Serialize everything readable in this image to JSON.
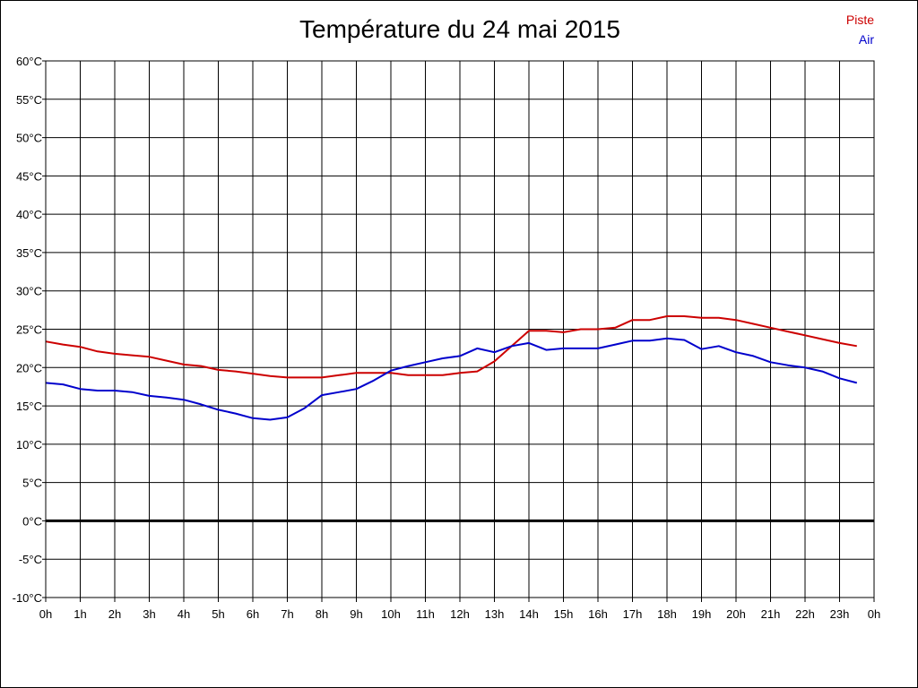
{
  "chart_data": {
    "type": "line",
    "title": "Température du 24 mai 2015",
    "xlabel": "",
    "ylabel": "",
    "x_tick_labels": [
      "0h",
      "1h",
      "2h",
      "3h",
      "4h",
      "5h",
      "6h",
      "7h",
      "8h",
      "9h",
      "10h",
      "11h",
      "12h",
      "13h",
      "14h",
      "15h",
      "16h",
      "17h",
      "18h",
      "19h",
      "20h",
      "21h",
      "22h",
      "23h",
      "0h"
    ],
    "y_tick_labels": [
      "60°C",
      "55°C",
      "50°C",
      "45°C",
      "40°C",
      "35°C",
      "30°C",
      "25°C",
      "20°C",
      "15°C",
      "10°C",
      "5°C",
      "0°C",
      "-5°C",
      "-10°C"
    ],
    "xlim": [
      0,
      24
    ],
    "ylim": [
      -10,
      60
    ],
    "grid": true,
    "legend_position": "top-right",
    "zero_line": true,
    "series": [
      {
        "name": "Piste",
        "color": "#cc0000",
        "x": [
          0,
          0.5,
          1,
          1.5,
          2,
          2.5,
          3,
          3.5,
          4,
          4.5,
          5,
          5.5,
          6,
          6.5,
          7,
          7.5,
          8,
          8.5,
          9,
          9.5,
          10,
          10.5,
          11,
          11.5,
          12,
          12.5,
          13,
          13.5,
          14,
          14.5,
          15,
          15.5,
          16,
          16.5,
          17,
          17.5,
          18,
          18.5,
          19,
          19.5,
          20,
          20.5,
          21,
          21.5,
          22,
          22.5,
          23,
          23.5
        ],
        "y": [
          23.4,
          23,
          22.7,
          22.1,
          21.8,
          21.6,
          21.4,
          20.9,
          20.4,
          20.2,
          19.7,
          19.5,
          19.2,
          18.9,
          18.7,
          18.7,
          18.7,
          19,
          19.3,
          19.3,
          19.3,
          19,
          19,
          19,
          19.3,
          19.5,
          20.8,
          22.8,
          24.8,
          24.8,
          24.6,
          25,
          25,
          25.2,
          26.2,
          26.2,
          26.7,
          26.7,
          26.5,
          26.5,
          26.2,
          25.7,
          25.2,
          24.7,
          24.2,
          23.7,
          23.2,
          22.8
        ]
      },
      {
        "name": "Air",
        "color": "#0000cc",
        "x": [
          0,
          0.5,
          1,
          1.5,
          2,
          2.5,
          3,
          3.5,
          4,
          4.5,
          5,
          5.5,
          6,
          6.5,
          7,
          7.5,
          8,
          8.5,
          9,
          9.5,
          10,
          10.5,
          11,
          11.5,
          12,
          12.5,
          13,
          13.5,
          14,
          14.5,
          15,
          15.5,
          16,
          16.5,
          17,
          17.5,
          18,
          18.5,
          19,
          19.5,
          20,
          20.5,
          21,
          21.5,
          22,
          22.5,
          23,
          23.5
        ],
        "y": [
          18,
          17.8,
          17.2,
          17,
          17,
          16.8,
          16.3,
          16.1,
          15.8,
          15.2,
          14.5,
          14,
          13.4,
          13.2,
          13.5,
          14.7,
          16.4,
          16.8,
          17.2,
          18.3,
          19.6,
          20.2,
          20.7,
          21.2,
          21.5,
          22.5,
          22,
          22.8,
          23.2,
          22.3,
          22.5,
          22.5,
          22.5,
          23,
          23.5,
          23.5,
          23.8,
          23.6,
          22.4,
          22.8,
          22,
          21.5,
          20.7,
          20.3,
          20,
          19.5,
          18.6,
          18
        ]
      }
    ]
  }
}
